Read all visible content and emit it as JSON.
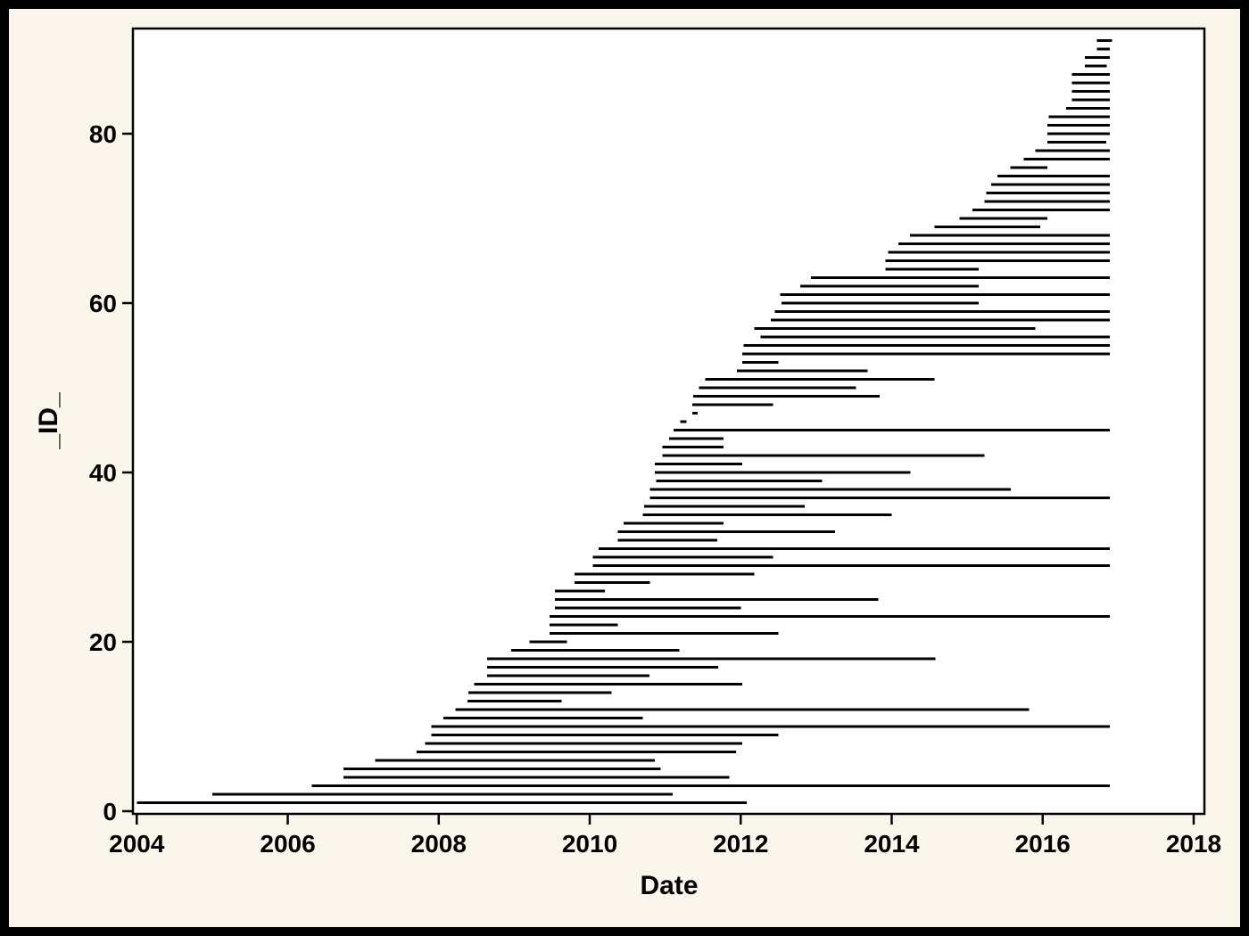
{
  "colors": {
    "outer_border": "#000000",
    "page_background": "#fbf6ec",
    "plot_background": "#ffffff",
    "line_color": "#000000",
    "axis_color": "#000000"
  },
  "chart_data": {
    "type": "bar",
    "subtype": "horizontal-segment-timeline",
    "title": "",
    "xlabel": "Date",
    "ylabel": "_ID_",
    "x_ticks": [
      2004,
      2006,
      2008,
      2010,
      2012,
      2014,
      2016,
      2018
    ],
    "y_ticks": [
      0,
      20,
      40,
      60,
      80
    ],
    "xlim": [
      2003.95,
      2018.15
    ],
    "ylim": [
      -0.35,
      92.4
    ],
    "grid": false,
    "legend": "none",
    "segments": [
      {
        "id": 1,
        "start": 2004.0,
        "end": 2012.08
      },
      {
        "id": 2,
        "start": 2005.0,
        "end": 2011.1
      },
      {
        "id": 3,
        "start": 2006.32,
        "end": 2016.89
      },
      {
        "id": 4,
        "start": 2006.74,
        "end": 2011.85
      },
      {
        "id": 5,
        "start": 2006.74,
        "end": 2010.94
      },
      {
        "id": 6,
        "start": 2007.16,
        "end": 2010.86
      },
      {
        "id": 7,
        "start": 2007.71,
        "end": 2011.94
      },
      {
        "id": 8,
        "start": 2007.82,
        "end": 2012.02
      },
      {
        "id": 9,
        "start": 2007.9,
        "end": 2012.5
      },
      {
        "id": 10,
        "start": 2007.9,
        "end": 2016.89
      },
      {
        "id": 11,
        "start": 2008.06,
        "end": 2010.7
      },
      {
        "id": 12,
        "start": 2008.22,
        "end": 2015.82
      },
      {
        "id": 13,
        "start": 2008.38,
        "end": 2009.63
      },
      {
        "id": 14,
        "start": 2008.39,
        "end": 2010.29
      },
      {
        "id": 15,
        "start": 2008.47,
        "end": 2012.02
      },
      {
        "id": 16,
        "start": 2008.64,
        "end": 2010.79
      },
      {
        "id": 17,
        "start": 2008.64,
        "end": 2011.7
      },
      {
        "id": 18,
        "start": 2008.64,
        "end": 2014.58
      },
      {
        "id": 19,
        "start": 2008.96,
        "end": 2011.19
      },
      {
        "id": 20,
        "start": 2009.2,
        "end": 2009.7
      },
      {
        "id": 21,
        "start": 2009.47,
        "end": 2012.5
      },
      {
        "id": 22,
        "start": 2009.47,
        "end": 2010.37
      },
      {
        "id": 23,
        "start": 2009.47,
        "end": 2016.89
      },
      {
        "id": 24,
        "start": 2009.54,
        "end": 2012.0
      },
      {
        "id": 25,
        "start": 2009.54,
        "end": 2013.82
      },
      {
        "id": 26,
        "start": 2009.54,
        "end": 2010.2
      },
      {
        "id": 27,
        "start": 2009.8,
        "end": 2010.8
      },
      {
        "id": 28,
        "start": 2009.8,
        "end": 2012.18
      },
      {
        "id": 29,
        "start": 2010.04,
        "end": 2016.89
      },
      {
        "id": 30,
        "start": 2010.04,
        "end": 2012.43
      },
      {
        "id": 31,
        "start": 2010.12,
        "end": 2016.89
      },
      {
        "id": 32,
        "start": 2010.37,
        "end": 2011.69
      },
      {
        "id": 33,
        "start": 2010.37,
        "end": 2013.25
      },
      {
        "id": 34,
        "start": 2010.45,
        "end": 2011.77
      },
      {
        "id": 35,
        "start": 2010.7,
        "end": 2014.0
      },
      {
        "id": 36,
        "start": 2010.72,
        "end": 2012.85
      },
      {
        "id": 37,
        "start": 2010.8,
        "end": 2016.89
      },
      {
        "id": 38,
        "start": 2010.8,
        "end": 2015.58
      },
      {
        "id": 39,
        "start": 2010.88,
        "end": 2013.08
      },
      {
        "id": 40,
        "start": 2010.86,
        "end": 2014.25
      },
      {
        "id": 41,
        "start": 2010.86,
        "end": 2012.02
      },
      {
        "id": 42,
        "start": 2010.96,
        "end": 2015.23
      },
      {
        "id": 43,
        "start": 2010.96,
        "end": 2011.77
      },
      {
        "id": 44,
        "start": 2011.05,
        "end": 2011.77
      },
      {
        "id": 45,
        "start": 2011.11,
        "end": 2016.89
      },
      {
        "id": 46,
        "start": 2011.2,
        "end": 2011.28
      },
      {
        "id": 47,
        "start": 2011.36,
        "end": 2011.43
      },
      {
        "id": 48,
        "start": 2011.36,
        "end": 2012.43
      },
      {
        "id": 49,
        "start": 2011.37,
        "end": 2013.84
      },
      {
        "id": 50,
        "start": 2011.45,
        "end": 2013.53
      },
      {
        "id": 51,
        "start": 2011.53,
        "end": 2014.57
      },
      {
        "id": 52,
        "start": 2011.95,
        "end": 2013.68
      },
      {
        "id": 53,
        "start": 2012.02,
        "end": 2012.5
      },
      {
        "id": 54,
        "start": 2012.02,
        "end": 2016.89
      },
      {
        "id": 55,
        "start": 2012.04,
        "end": 2016.89
      },
      {
        "id": 56,
        "start": 2012.26,
        "end": 2016.89
      },
      {
        "id": 57,
        "start": 2012.18,
        "end": 2015.9
      },
      {
        "id": 58,
        "start": 2012.4,
        "end": 2016.89
      },
      {
        "id": 59,
        "start": 2012.45,
        "end": 2016.89
      },
      {
        "id": 60,
        "start": 2012.54,
        "end": 2015.15
      },
      {
        "id": 61,
        "start": 2012.52,
        "end": 2016.89
      },
      {
        "id": 62,
        "start": 2012.79,
        "end": 2015.15
      },
      {
        "id": 63,
        "start": 2012.93,
        "end": 2016.89
      },
      {
        "id": 64,
        "start": 2013.92,
        "end": 2015.15
      },
      {
        "id": 65,
        "start": 2013.92,
        "end": 2016.89
      },
      {
        "id": 66,
        "start": 2013.95,
        "end": 2016.89
      },
      {
        "id": 67,
        "start": 2014.09,
        "end": 2016.89
      },
      {
        "id": 68,
        "start": 2014.24,
        "end": 2016.89
      },
      {
        "id": 69,
        "start": 2014.57,
        "end": 2015.97
      },
      {
        "id": 70,
        "start": 2014.9,
        "end": 2016.06
      },
      {
        "id": 71,
        "start": 2015.07,
        "end": 2016.89
      },
      {
        "id": 72,
        "start": 2015.23,
        "end": 2016.89
      },
      {
        "id": 73,
        "start": 2015.25,
        "end": 2016.89
      },
      {
        "id": 74,
        "start": 2015.32,
        "end": 2016.89
      },
      {
        "id": 75,
        "start": 2015.4,
        "end": 2016.89
      },
      {
        "id": 76,
        "start": 2015.57,
        "end": 2016.06
      },
      {
        "id": 77,
        "start": 2015.75,
        "end": 2016.89
      },
      {
        "id": 78,
        "start": 2015.9,
        "end": 2016.89
      },
      {
        "id": 79,
        "start": 2016.06,
        "end": 2016.84
      },
      {
        "id": 80,
        "start": 2016.06,
        "end": 2016.89
      },
      {
        "id": 81,
        "start": 2016.06,
        "end": 2016.89
      },
      {
        "id": 82,
        "start": 2016.08,
        "end": 2016.89
      },
      {
        "id": 83,
        "start": 2016.31,
        "end": 2016.89
      },
      {
        "id": 84,
        "start": 2016.39,
        "end": 2016.89
      },
      {
        "id": 85,
        "start": 2016.39,
        "end": 2016.89
      },
      {
        "id": 86,
        "start": 2016.39,
        "end": 2016.89
      },
      {
        "id": 87,
        "start": 2016.39,
        "end": 2016.89
      },
      {
        "id": 88,
        "start": 2016.56,
        "end": 2016.85
      },
      {
        "id": 89,
        "start": 2016.56,
        "end": 2016.89
      },
      {
        "id": 90,
        "start": 2016.72,
        "end": 2016.89
      },
      {
        "id": 91,
        "start": 2016.72,
        "end": 2016.92
      }
    ]
  }
}
